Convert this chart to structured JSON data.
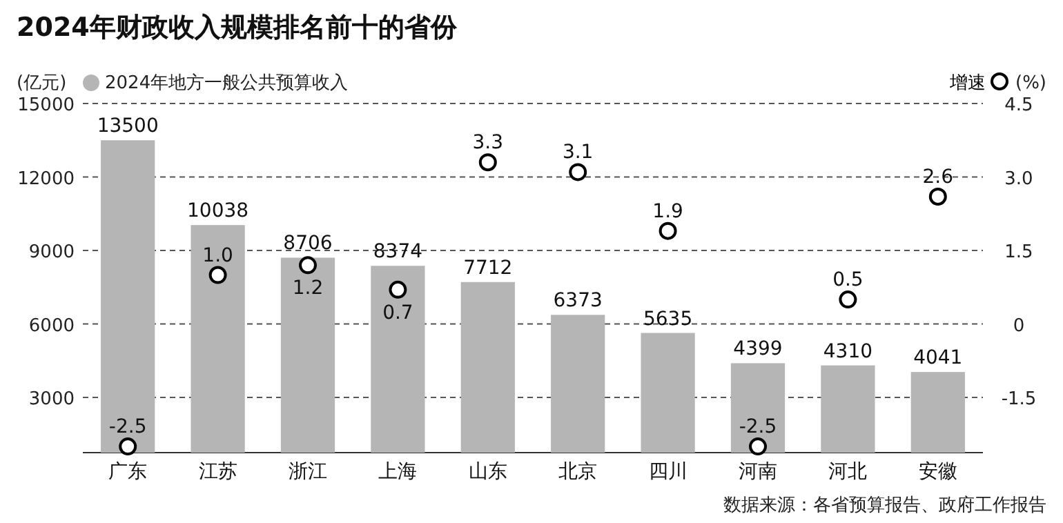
{
  "chart_data": {
    "type": "bar",
    "title": "2024年财政收入规模排名前十的省份",
    "ylabel": "(亿元)",
    "y2label": "(%)",
    "categories": [
      "广东",
      "江苏",
      "浙江",
      "上海",
      "山东",
      "北京",
      "四川",
      "河南",
      "河北",
      "安徽"
    ],
    "series": [
      {
        "name": "2024年地方一般公共预算收入",
        "color": "#b5b5b5",
        "values": [
          13500,
          10038,
          8706,
          8374,
          7712,
          6373,
          5635,
          4399,
          4310,
          4041
        ]
      },
      {
        "name": "增速",
        "type": "scatter",
        "axis": "y2",
        "color": "#000000",
        "marker": "circle",
        "values": [
          -2.5,
          1.0,
          1.2,
          0.7,
          3.3,
          3.1,
          1.9,
          -2.5,
          0.5,
          2.6
        ],
        "value_labels": [
          "-2.5",
          "1.0",
          "1.2",
          "0.7",
          "3.3",
          "3.1",
          "1.9",
          "-2.5",
          "0.5",
          "2.6"
        ]
      }
    ],
    "ylim": [
      750,
      15000
    ],
    "yticks": [
      3000,
      6000,
      9000,
      12000,
      15000
    ],
    "y2lim": [
      -2.625,
      4.5
    ],
    "y2ticks": [
      -1.5,
      0,
      {
        "value": 1.5,
        "label": "1.5"
      },
      {
        "value": 3,
        "label": "3.0"
      },
      {
        "value": 4.5,
        "label": "4.5"
      }
    ],
    "grid": "y",
    "legend": "top",
    "data_labels": true,
    "annotations": [
      "数据来源：各省预算报告、政府工作报告"
    ]
  }
}
